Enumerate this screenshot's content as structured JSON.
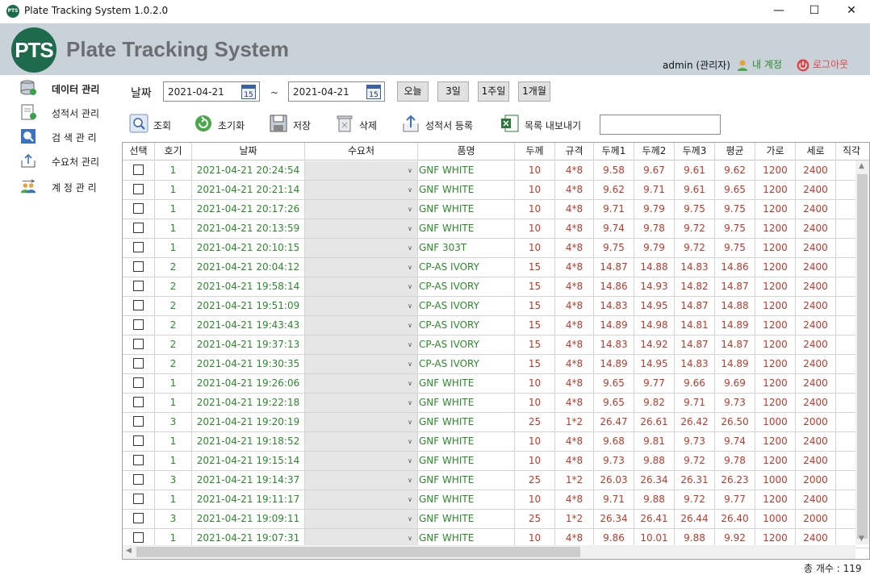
{
  "window": {
    "title": "Plate Tracking System 1.0.2.0",
    "app_icon": "PTS",
    "minimize": "—",
    "maximize": "☐",
    "close": "✕"
  },
  "header": {
    "logo_text": "PTS",
    "brand": "Plate Tracking System",
    "user": "admin (관리자)",
    "my_account": "내 계정",
    "logout": "로그아웃"
  },
  "sidebar": {
    "items": [
      {
        "label": "데이터 관리",
        "icon": "database-icon"
      },
      {
        "label": "성적서 관리",
        "icon": "document-icon"
      },
      {
        "label": "검 색 관 리",
        "icon": "search-icon"
      },
      {
        "label": "수요처 관리",
        "icon": "upload-icon"
      },
      {
        "label": "계 정  관 리",
        "icon": "users-icon"
      }
    ]
  },
  "filter": {
    "date_label": "날짜",
    "date_from": "2021-04-21",
    "date_to": "2021-04-21",
    "cal_num": "15",
    "tilde": "~",
    "quick": [
      "오늘",
      "3일",
      "1주일",
      "1개월"
    ]
  },
  "toolbar": {
    "search": "조회",
    "reset": "초기화",
    "save": "저장",
    "delete": "삭제",
    "register_cert": "성적서 등록",
    "export": "목록 내보내기",
    "search_input": ""
  },
  "grid": {
    "columns": [
      "선택",
      "호기",
      "날짜",
      "수요처",
      "품명",
      "두께",
      "규격",
      "두께1",
      "두께2",
      "두께3",
      "평균",
      "가로",
      "세로",
      "직각"
    ],
    "rows": [
      {
        "unit": "1",
        "date": "2021-04-21 20:24:54",
        "product": "GNF WHITE",
        "thick": "10",
        "spec": "4*8",
        "t1": "9.58",
        "t2": "9.67",
        "t3": "9.61",
        "avg": "9.62",
        "w": "1200",
        "h": "2400"
      },
      {
        "unit": "1",
        "date": "2021-04-21 20:21:14",
        "product": "GNF WHITE",
        "thick": "10",
        "spec": "4*8",
        "t1": "9.62",
        "t2": "9.71",
        "t3": "9.61",
        "avg": "9.65",
        "w": "1200",
        "h": "2400"
      },
      {
        "unit": "1",
        "date": "2021-04-21 20:17:26",
        "product": "GNF WHITE",
        "thick": "10",
        "spec": "4*8",
        "t1": "9.71",
        "t2": "9.79",
        "t3": "9.75",
        "avg": "9.75",
        "w": "1200",
        "h": "2400"
      },
      {
        "unit": "1",
        "date": "2021-04-21 20:13:59",
        "product": "GNF WHITE",
        "thick": "10",
        "spec": "4*8",
        "t1": "9.74",
        "t2": "9.78",
        "t3": "9.72",
        "avg": "9.75",
        "w": "1200",
        "h": "2400"
      },
      {
        "unit": "1",
        "date": "2021-04-21 20:10:15",
        "product": "GNF 303T",
        "thick": "10",
        "spec": "4*8",
        "t1": "9.75",
        "t2": "9.79",
        "t3": "9.72",
        "avg": "9.75",
        "w": "1200",
        "h": "2400"
      },
      {
        "unit": "2",
        "date": "2021-04-21 20:04:12",
        "product": "CP-AS IVORY",
        "thick": "15",
        "spec": "4*8",
        "t1": "14.87",
        "t2": "14.88",
        "t3": "14.83",
        "avg": "14.86",
        "w": "1200",
        "h": "2400"
      },
      {
        "unit": "2",
        "date": "2021-04-21 19:58:14",
        "product": "CP-AS IVORY",
        "thick": "15",
        "spec": "4*8",
        "t1": "14.86",
        "t2": "14.93",
        "t3": "14.82",
        "avg": "14.87",
        "w": "1200",
        "h": "2400"
      },
      {
        "unit": "2",
        "date": "2021-04-21 19:51:09",
        "product": "CP-AS IVORY",
        "thick": "15",
        "spec": "4*8",
        "t1": "14.83",
        "t2": "14.95",
        "t3": "14.87",
        "avg": "14.88",
        "w": "1200",
        "h": "2400"
      },
      {
        "unit": "2",
        "date": "2021-04-21 19:43:43",
        "product": "CP-AS IVORY",
        "thick": "15",
        "spec": "4*8",
        "t1": "14.89",
        "t2": "14.98",
        "t3": "14.81",
        "avg": "14.89",
        "w": "1200",
        "h": "2400"
      },
      {
        "unit": "2",
        "date": "2021-04-21 19:37:13",
        "product": "CP-AS IVORY",
        "thick": "15",
        "spec": "4*8",
        "t1": "14.83",
        "t2": "14.92",
        "t3": "14.87",
        "avg": "14.87",
        "w": "1200",
        "h": "2400"
      },
      {
        "unit": "2",
        "date": "2021-04-21 19:30:35",
        "product": "CP-AS IVORY",
        "thick": "15",
        "spec": "4*8",
        "t1": "14.89",
        "t2": "14.95",
        "t3": "14.83",
        "avg": "14.89",
        "w": "1200",
        "h": "2400"
      },
      {
        "unit": "1",
        "date": "2021-04-21 19:26:06",
        "product": "GNF WHITE",
        "thick": "10",
        "spec": "4*8",
        "t1": "9.65",
        "t2": "9.77",
        "t3": "9.66",
        "avg": "9.69",
        "w": "1200",
        "h": "2400"
      },
      {
        "unit": "1",
        "date": "2021-04-21 19:22:18",
        "product": "GNF WHITE",
        "thick": "10",
        "spec": "4*8",
        "t1": "9.65",
        "t2": "9.82",
        "t3": "9.71",
        "avg": "9.73",
        "w": "1200",
        "h": "2400"
      },
      {
        "unit": "3",
        "date": "2021-04-21 19:20:19",
        "product": "GNF WHITE",
        "thick": "25",
        "spec": "1*2",
        "t1": "26.47",
        "t2": "26.61",
        "t3": "26.42",
        "avg": "26.50",
        "w": "1000",
        "h": "2000"
      },
      {
        "unit": "1",
        "date": "2021-04-21 19:18:52",
        "product": "GNF WHITE",
        "thick": "10",
        "spec": "4*8",
        "t1": "9.68",
        "t2": "9.81",
        "t3": "9.73",
        "avg": "9.74",
        "w": "1200",
        "h": "2400"
      },
      {
        "unit": "1",
        "date": "2021-04-21 19:15:14",
        "product": "GNF WHITE",
        "thick": "10",
        "spec": "4*8",
        "t1": "9.73",
        "t2": "9.88",
        "t3": "9.72",
        "avg": "9.78",
        "w": "1200",
        "h": "2400"
      },
      {
        "unit": "3",
        "date": "2021-04-21 19:14:37",
        "product": "GNF WHITE",
        "thick": "25",
        "spec": "1*2",
        "t1": "26.03",
        "t2": "26.34",
        "t3": "26.31",
        "avg": "26.23",
        "w": "1000",
        "h": "2000"
      },
      {
        "unit": "1",
        "date": "2021-04-21 19:11:17",
        "product": "GNF WHITE",
        "thick": "10",
        "spec": "4*8",
        "t1": "9.71",
        "t2": "9.88",
        "t3": "9.72",
        "avg": "9.77",
        "w": "1200",
        "h": "2400"
      },
      {
        "unit": "3",
        "date": "2021-04-21 19:09:11",
        "product": "GNF WHITE",
        "thick": "25",
        "spec": "1*2",
        "t1": "26.34",
        "t2": "26.41",
        "t3": "26.44",
        "avg": "26.40",
        "w": "1000",
        "h": "2000"
      },
      {
        "unit": "1",
        "date": "2021-04-21 19:07:31",
        "product": "GNF WHITE",
        "thick": "10",
        "spec": "4*8",
        "t1": "9.86",
        "t2": "10.01",
        "t3": "9.88",
        "avg": "9.92",
        "w": "1200",
        "h": "2400"
      }
    ]
  },
  "footer": {
    "total": "총 개수 : 119"
  }
}
